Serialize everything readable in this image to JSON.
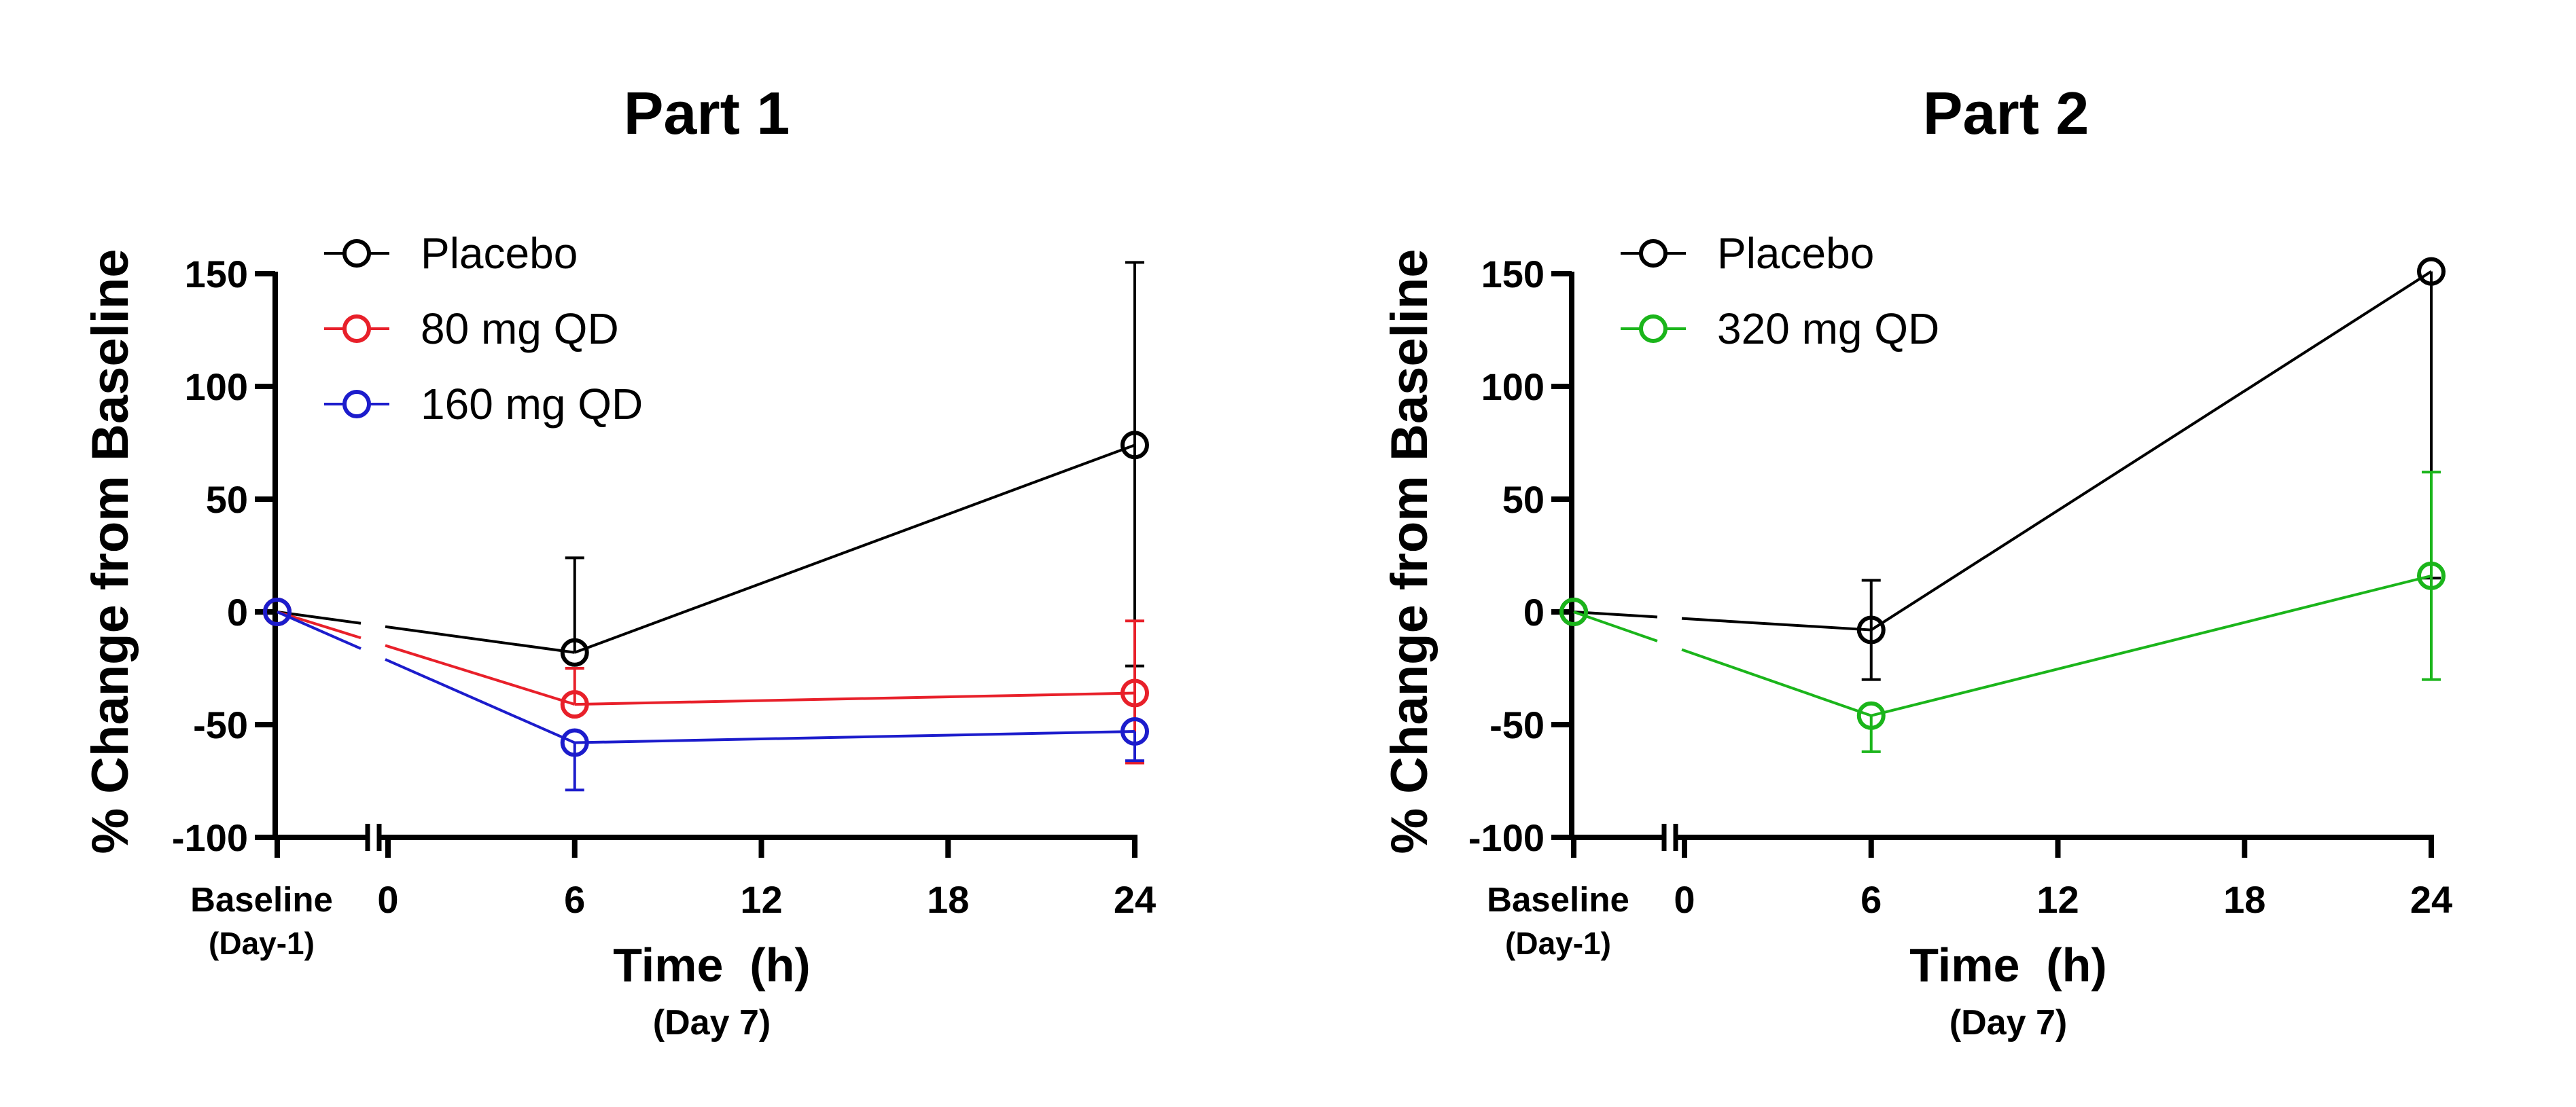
{
  "colors": {
    "placebo": "#000000",
    "dose80": "#e8202a",
    "dose160": "#1c1ccc",
    "dose320": "#1bb51b",
    "axis": "#000000"
  },
  "chart_data": [
    {
      "type": "line",
      "title": "Part 1",
      "ylabel": "% Change from Baseline",
      "xlabel": "Time  (h)",
      "xlabel_sub": "(Day 7)",
      "baseline_label": [
        "Baseline",
        "(Day-1)"
      ],
      "ylim": [
        -100,
        150
      ],
      "yticks": [
        -100,
        -50,
        0,
        50,
        100,
        150
      ],
      "xlim": [
        0,
        24
      ],
      "xticks": [
        0,
        6,
        12,
        18,
        24
      ],
      "legend_position": "top-left",
      "series": [
        {
          "name": "Placebo",
          "color_key": "placebo",
          "baseline": 0,
          "x": [
            6,
            24
          ],
          "y": [
            -18,
            74
          ],
          "err_up": [
            42,
            81
          ],
          "err_down": [
            0,
            98
          ]
        },
        {
          "name": "80 mg QD",
          "color_key": "dose80",
          "baseline": 0,
          "x": [
            6,
            24
          ],
          "y": [
            -41,
            -36
          ],
          "err_up": [
            16,
            32
          ],
          "err_down": [
            0,
            31
          ]
        },
        {
          "name": "160 mg QD",
          "color_key": "dose160",
          "baseline": 0,
          "x": [
            6,
            24
          ],
          "y": [
            -58,
            -53
          ],
          "err_up": [
            0,
            0
          ],
          "err_down": [
            21,
            13
          ]
        }
      ]
    },
    {
      "type": "line",
      "title": "Part 2",
      "ylabel": "% Change from Baseline",
      "xlabel": "Time  (h)",
      "xlabel_sub": "(Day 7)",
      "baseline_label": [
        "Baseline",
        "(Day-1)"
      ],
      "ylim": [
        -100,
        150
      ],
      "yticks": [
        -100,
        -50,
        0,
        50,
        100,
        150
      ],
      "xlim": [
        0,
        24
      ],
      "xticks": [
        0,
        6,
        12,
        18,
        24
      ],
      "legend_position": "top-left",
      "series": [
        {
          "name": "Placebo",
          "color_key": "placebo",
          "baseline": 0,
          "x": [
            6,
            24
          ],
          "y": [
            -8,
            151
          ],
          "err_up": [
            22,
            0
          ],
          "err_down": [
            22,
            136
          ]
        },
        {
          "name": "320 mg QD",
          "color_key": "dose320",
          "baseline": 0,
          "x": [
            6,
            24
          ],
          "y": [
            -46,
            16
          ],
          "err_up": [
            0,
            46
          ],
          "err_down": [
            16,
            46
          ]
        }
      ]
    }
  ]
}
